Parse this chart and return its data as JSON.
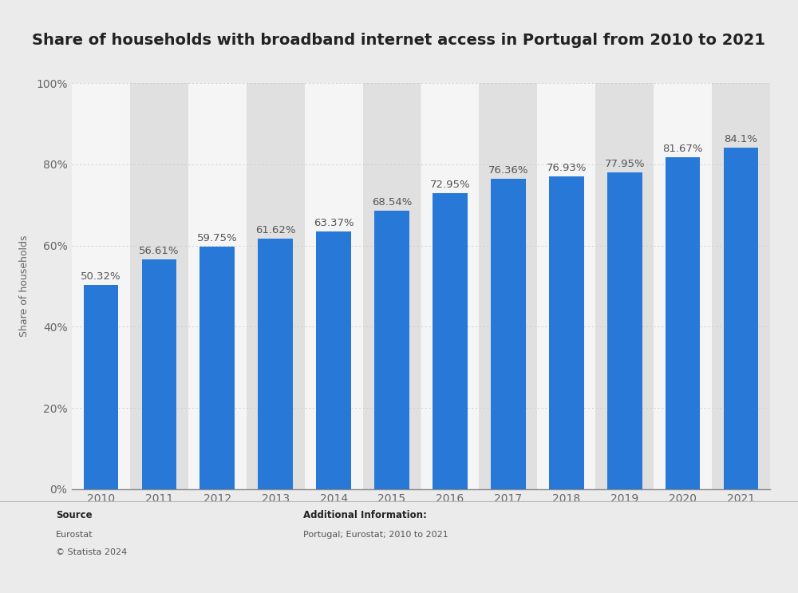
{
  "title": "Share of households with broadband internet access in Portugal from 2010 to 2021",
  "years": [
    "2010",
    "2011",
    "2012",
    "2013",
    "2014",
    "2015",
    "2016",
    "2017",
    "2018",
    "2019",
    "2020",
    "2021"
  ],
  "values": [
    50.32,
    56.61,
    59.75,
    61.62,
    63.37,
    68.54,
    72.95,
    76.36,
    76.93,
    77.95,
    81.67,
    84.1
  ],
  "labels": [
    "50.32%",
    "56.61%",
    "59.75%",
    "61.62%",
    "63.37%",
    "68.54%",
    "72.95%",
    "76.36%",
    "76.93%",
    "77.95%",
    "81.67%",
    "84.1%"
  ],
  "bar_color": "#2878d8",
  "background_color": "#ebebeb",
  "plot_bg_color": "#ebebeb",
  "col_bg_light": "#f5f5f5",
  "col_bg_dark": "#e0e0e0",
  "ylabel": "Share of households",
  "ylim": [
    0,
    100
  ],
  "yticks": [
    0,
    20,
    40,
    60,
    80,
    100
  ],
  "ytick_labels": [
    "0%",
    "20%",
    "40%",
    "60%",
    "80%",
    "100%"
  ],
  "title_fontsize": 14,
  "label_fontsize": 9.5,
  "axis_fontsize": 10,
  "ylabel_fontsize": 9,
  "source_text": "Source",
  "source_line1": "Eurostat",
  "source_line2": "© Statista 2024",
  "addinfo_title": "Additional Information:",
  "addinfo_line1": "Portugal; Eurostat; 2010 to 2021",
  "grid_color": "#cccccc",
  "label_color": "#555555",
  "tick_color": "#666666"
}
